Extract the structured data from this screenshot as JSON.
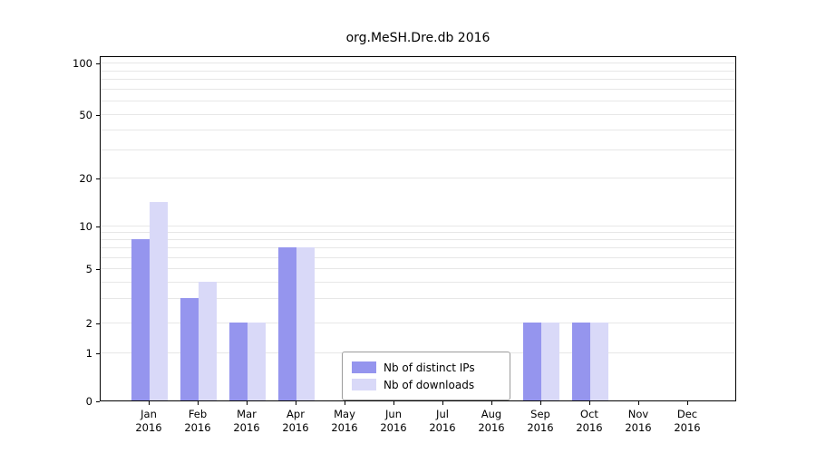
{
  "title": "org.MeSH.Dre.db 2016",
  "chart_data": {
    "type": "bar",
    "title": "org.MeSH.Dre.db 2016",
    "categories": [
      "Jan",
      "Feb",
      "Mar",
      "Apr",
      "May",
      "Jun",
      "Jul",
      "Aug",
      "Sep",
      "Oct",
      "Nov",
      "Dec"
    ],
    "year_label": "2016",
    "series": [
      {
        "name": "Nb of distinct IPs",
        "color": "#9595ee",
        "values": [
          8,
          3,
          2,
          7,
          0,
          0,
          0,
          0,
          2,
          2,
          0,
          0
        ]
      },
      {
        "name": "Nb of downloads",
        "color": "#d9d9f8",
        "values": [
          14,
          4,
          2,
          7,
          0,
          0,
          0,
          0,
          2,
          2,
          0,
          0
        ]
      }
    ],
    "yticks": [
      0,
      1,
      2,
      5,
      10,
      20,
      50,
      100
    ],
    "grid_values": [
      1,
      2,
      3,
      4,
      5,
      6,
      7,
      8,
      9,
      10,
      20,
      30,
      40,
      50,
      60,
      70,
      80,
      90,
      100
    ],
    "scale": "log-like (0,1,2,5,10,20,50,100)",
    "ylim": [
      0,
      120
    ],
    "grid": "horizontal light gray",
    "legend_position": "bottom-center"
  }
}
